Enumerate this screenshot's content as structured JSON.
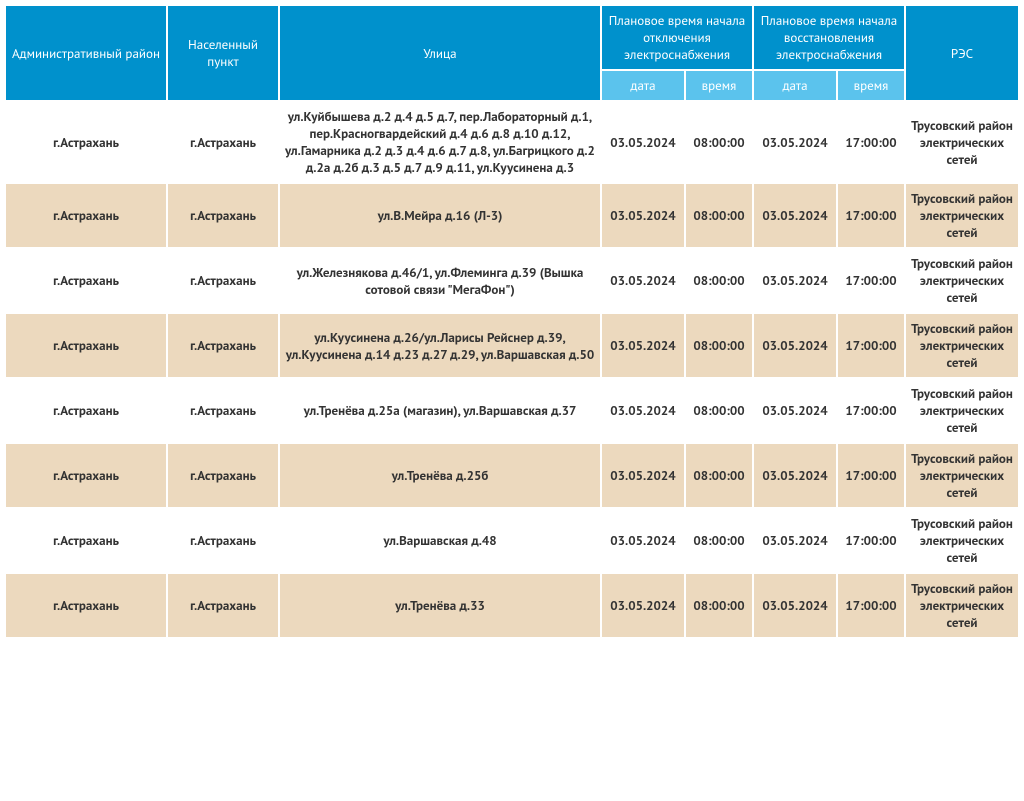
{
  "header": {
    "district": "Административный район",
    "locality": "Населенный пункт",
    "street": "Улица",
    "off": "Плановое время начала отключения электроснабжения",
    "on": "Плановое время начала восстановления электроснабжения",
    "res": "РЭС",
    "date": "дата",
    "time": "время"
  },
  "colors": {
    "header_main": "#0091cc",
    "header_sub": "#5bc3ed",
    "row_alt": "#ecd9be",
    "row_bg": "#ffffff"
  },
  "rows": [
    {
      "district": "г.Астрахань",
      "locality": "г.Астрахань",
      "street": "ул.Куйбышева д.2 д.4 д.5 д.7, пер.Лабораторный д.1, пер.Красногвардейский д.4 д.6 д.8 д.10 д.12, ул.Гамарника д.2 д.3 д.4 д.6 д.7 д.8, ул.Багрицкого д.2 д.2а д.2б д.3 д.5 д.7 д.9 д.11, ул.Куусинена д.3",
      "off_date": "03.05.2024",
      "off_time": "08:00:00",
      "on_date": "03.05.2024",
      "on_time": "17:00:00",
      "res": "Трусовский район электрических сетей"
    },
    {
      "district": "г.Астрахань",
      "locality": "г.Астрахань",
      "street": "ул.В.Мейра д.16 (Л-3)",
      "off_date": "03.05.2024",
      "off_time": "08:00:00",
      "on_date": "03.05.2024",
      "on_time": "17:00:00",
      "res": "Трусовский район электрических сетей"
    },
    {
      "district": "г.Астрахань",
      "locality": "г.Астрахань",
      "street": "ул.Железнякова д.46/1, ул.Флеминга д.39 (Вышка сотовой связи \"МегаФон\")",
      "off_date": "03.05.2024",
      "off_time": "08:00:00",
      "on_date": "03.05.2024",
      "on_time": "17:00:00",
      "res": "Трусовский район электрических сетей"
    },
    {
      "district": "г.Астрахань",
      "locality": "г.Астрахань",
      "street": "ул.Куусинена д.26/ул.Ларисы Рейснер д.39, ул.Куусинена д.14 д.23 д.27 д.29, ул.Варшавская д.50",
      "off_date": "03.05.2024",
      "off_time": "08:00:00",
      "on_date": "03.05.2024",
      "on_time": "17:00:00",
      "res": "Трусовский район электрических сетей"
    },
    {
      "district": "г.Астрахань",
      "locality": "г.Астрахань",
      "street": "ул.Тренёва д.25а (магазин), ул.Варшавская д.37",
      "off_date": "03.05.2024",
      "off_time": "08:00:00",
      "on_date": "03.05.2024",
      "on_time": "17:00:00",
      "res": "Трусовский район электрических сетей"
    },
    {
      "district": "г.Астрахань",
      "locality": "г.Астрахань",
      "street": "ул.Тренёва д.25б",
      "off_date": "03.05.2024",
      "off_time": "08:00:00",
      "on_date": "03.05.2024",
      "on_time": "17:00:00",
      "res": "Трусовский район электрических сетей"
    },
    {
      "district": "г.Астрахань",
      "locality": "г.Астрахань",
      "street": "ул.Варшавская д.48",
      "off_date": "03.05.2024",
      "off_time": "08:00:00",
      "on_date": "03.05.2024",
      "on_time": "17:00:00",
      "res": "Трусовский район электрических сетей"
    },
    {
      "district": "г.Астрахань",
      "locality": "г.Астрахань",
      "street": "ул.Тренёва д.33",
      "off_date": "03.05.2024",
      "off_time": "08:00:00",
      "on_date": "03.05.2024",
      "on_time": "17:00:00",
      "res": "Трусовский район электрических сетей"
    }
  ]
}
